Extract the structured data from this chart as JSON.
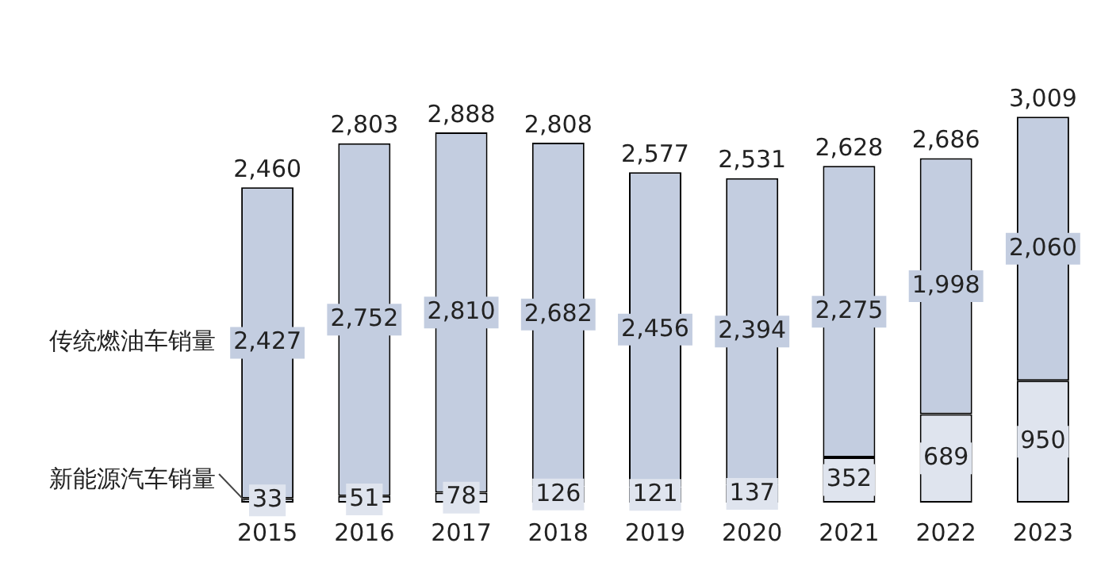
{
  "chart_data": {
    "type": "bar",
    "stacked": true,
    "legend": "left",
    "grid": false,
    "categories": [
      "2015",
      "2016",
      "2017",
      "2018",
      "2019",
      "2020",
      "2021",
      "2022",
      "2023"
    ],
    "series": [
      {
        "name": "新能源汽车销量",
        "color": "#dfe4ee",
        "values": [
          33,
          51,
          78,
          126,
          121,
          137,
          352,
          689,
          950
        ],
        "value_labels": [
          "33",
          "51",
          "78",
          "126",
          "121",
          "137",
          "352",
          "689",
          "950"
        ]
      },
      {
        "name": "传统燃油车销量",
        "color": "#c3cde0",
        "values": [
          2427,
          2752,
          2810,
          2682,
          2456,
          2394,
          2275,
          1998,
          2060
        ],
        "value_labels": [
          "2,427",
          "2,752",
          "2,810",
          "2,682",
          "2,456",
          "2,394",
          "2,275",
          "1,998",
          "2,060"
        ]
      }
    ],
    "totals": [
      "2,460",
      "2,803",
      "2,888",
      "2,808",
      "2,577",
      "2,531",
      "2,628",
      "2,686",
      "3,009"
    ]
  }
}
